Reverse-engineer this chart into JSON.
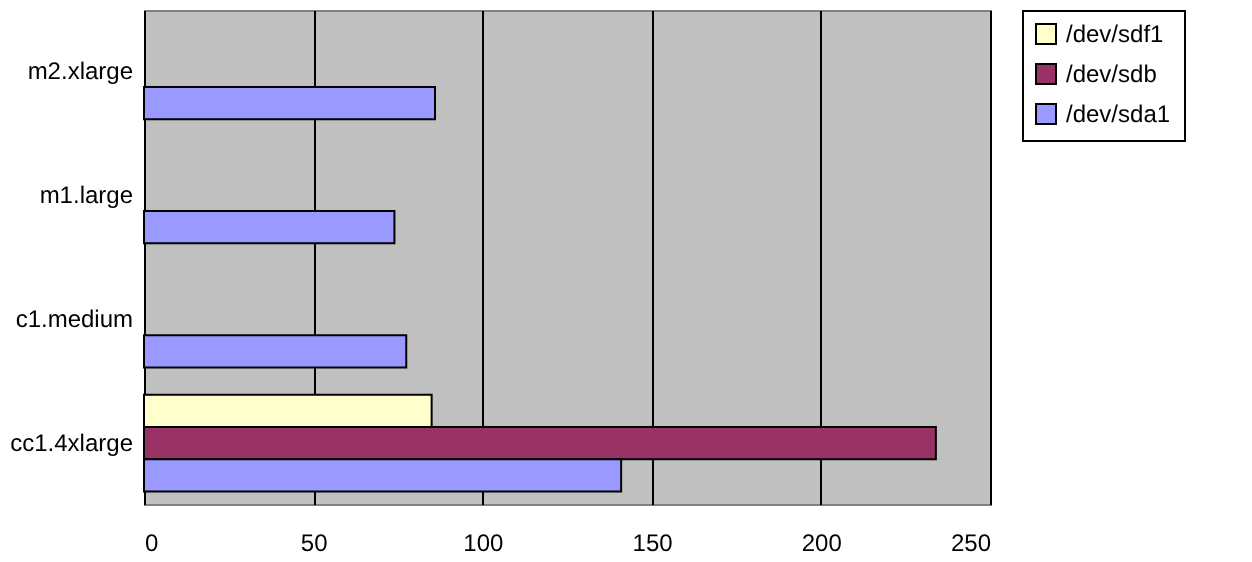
{
  "chart_data": {
    "type": "bar",
    "orientation": "horizontal",
    "categories": [
      "m2.xlarge",
      "m1.large",
      "c1.medium",
      "cc1.4xlarge"
    ],
    "series": [
      {
        "name": "/dev/sdf1",
        "color": "#ffffcc",
        "values": [
          null,
          null,
          null,
          85
        ]
      },
      {
        "name": "/dev/sdb",
        "color": "#993366",
        "values": [
          null,
          null,
          null,
          234
        ]
      },
      {
        "name": "/dev/sda1",
        "color": "#9999ff",
        "values": [
          86,
          74,
          77.5,
          141
        ]
      }
    ],
    "xlim": [
      0,
      250
    ],
    "xticks": [
      0,
      50,
      100,
      150,
      200,
      250
    ],
    "grid": "x",
    "legend": "right"
  }
}
